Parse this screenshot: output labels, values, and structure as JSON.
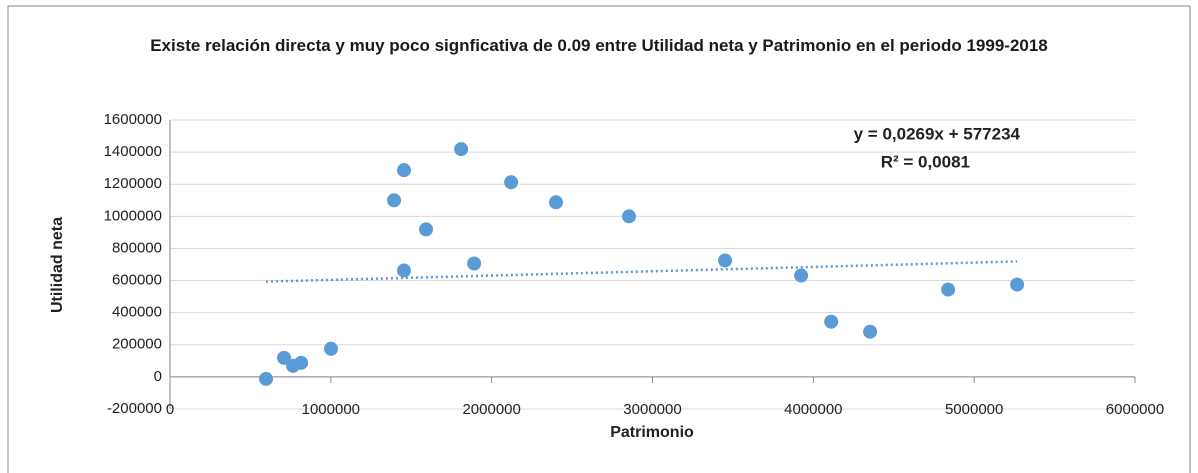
{
  "chart_data": {
    "type": "scatter",
    "title": "Existe relación directa y muy poco signficativa de 0.09 entre Utilidad neta y Patrimonio en el periodo 1999-2018",
    "x_label": "Patrimonio",
    "y_label": "Utilidad neta",
    "series": [
      {
        "name": "Utilidad neta",
        "color": "#5b9bd5",
        "x": [
          597000,
          709000,
          765000,
          815000,
          1001000,
          1393000,
          1455000,
          1455000,
          1592000,
          1810000,
          1891000,
          2121000,
          2400000,
          2854000,
          3451000,
          3924000,
          4111000,
          4353000,
          4838000,
          5267000
        ],
        "values": [
          -12500,
          118750,
          68750,
          87500,
          175000,
          1100000,
          1287500,
          662500,
          918750,
          1418750,
          706250,
          1212500,
          1087500,
          1000000,
          725000,
          631250,
          343750,
          281250,
          543750,
          575000
        ]
      }
    ],
    "trendline": {
      "slope": 0.0269,
      "intercept": 577234,
      "equation": "y = 0,0269x + 577234",
      "r2_label": "R² = 0,0081",
      "style": "dotted"
    },
    "xlim": [
      0,
      6000000
    ],
    "xticks": [
      0,
      1000000,
      2000000,
      3000000,
      4000000,
      5000000,
      6000000
    ],
    "ylim": [
      -200000,
      1600000
    ],
    "yticks": [
      -200000,
      0,
      200000,
      400000,
      600000,
      800000,
      1000000,
      1200000,
      1400000,
      1600000
    ],
    "grid": true
  }
}
